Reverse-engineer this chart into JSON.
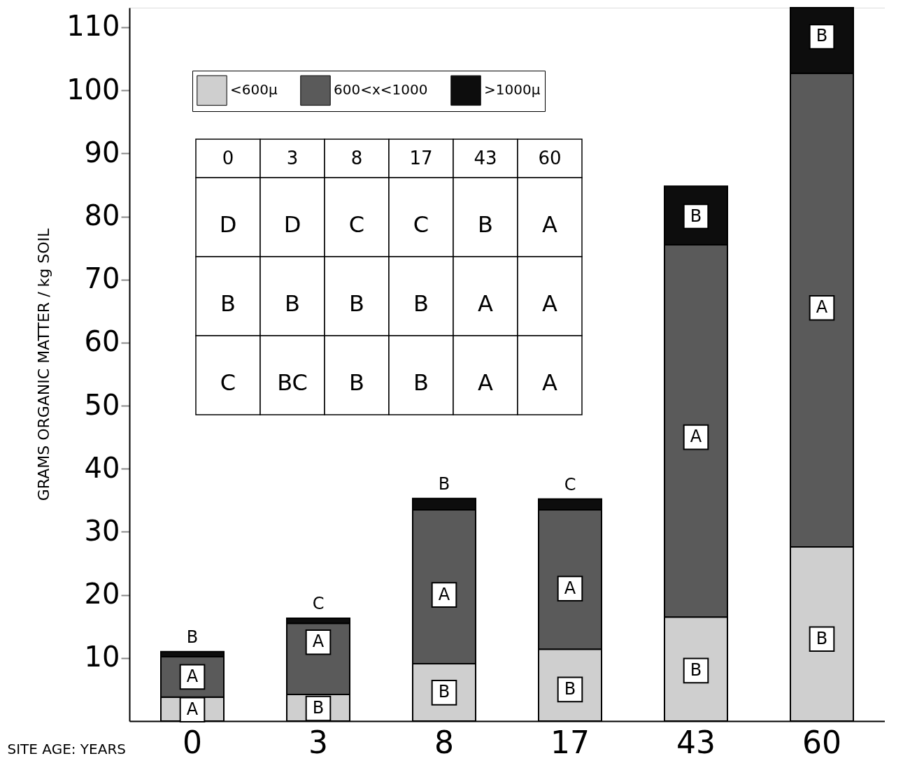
{
  "chart_data": {
    "type": "bar",
    "stacked": true,
    "xlabel": "SITE AGE: YEARS",
    "ylabel": "GRAMS ORGANIC MATTER / kg SOIL",
    "categories": [
      "0",
      "3",
      "8",
      "17",
      "43",
      "60"
    ],
    "series": [
      {
        "name": "<600μ",
        "color": "#cfcfcf",
        "values": [
          3.8,
          4.2,
          9.1,
          11.4,
          16.5,
          27.6
        ]
      },
      {
        "name": "600<x<1000",
        "color": "#5a5a5a",
        "values": [
          6.4,
          11.3,
          24.4,
          22.1,
          59.0,
          75.1
        ]
      },
      {
        "name": ">1000μ",
        "color": "#0d0d0d",
        "values": [
          0.8,
          0.8,
          1.8,
          1.7,
          9.3,
          10.4
        ]
      }
    ],
    "ylim": [
      0,
      113.1
    ],
    "yticks": [
      10,
      20,
      30,
      40,
      50,
      60,
      70,
      80,
      90,
      100,
      110
    ],
    "grid": false,
    "legend": "top left",
    "annotations": [
      "0",
      "3",
      "8",
      "17",
      "43",
      "60",
      "D",
      "D",
      "C",
      "C",
      "B",
      "A",
      "B",
      "B",
      "B",
      "B",
      "A",
      "A",
      "C",
      "BC",
      "B",
      "B",
      "A",
      "A",
      {
        "text": "B",
        "x": "0",
        "y": 11.0
      },
      {
        "text": "A",
        "x": "0",
        "y": 7
      },
      {
        "text": "A",
        "x": "0",
        "y": 1.8
      },
      {
        "text": "C",
        "x": "3",
        "y": 16.3
      },
      {
        "text": "A",
        "x": "3",
        "y": 12.5
      },
      {
        "text": "B",
        "x": "3",
        "y": 2
      },
      {
        "text": "B",
        "x": "8",
        "y": 35.3
      },
      {
        "text": "A",
        "x": "8",
        "y": 20
      },
      {
        "text": "B",
        "x": "8",
        "y": 4.5
      },
      {
        "text": "C",
        "x": "17",
        "y": 35.2
      },
      {
        "text": "A",
        "x": "17",
        "y": 21
      },
      {
        "text": "B",
        "x": "17",
        "y": 5
      },
      {
        "text": "B",
        "x": "43",
        "y": 80
      },
      {
        "text": "A",
        "x": "43",
        "y": 45
      },
      {
        "text": "B",
        "x": "43",
        "y": 8
      },
      {
        "text": "B",
        "x": "60",
        "y": 108.5
      },
      {
        "text": "A",
        "x": "60",
        "y": 65.5
      },
      {
        "text": "B",
        "x": "60",
        "y": 13
      }
    ]
  }
}
